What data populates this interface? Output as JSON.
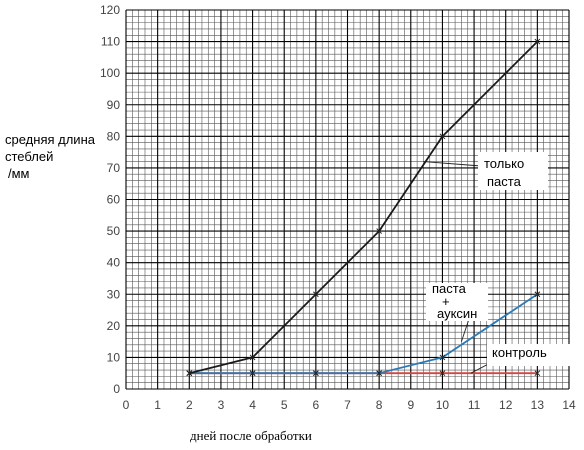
{
  "chart_data": {
    "type": "line",
    "title": "",
    "xlabel": "дней после обработки",
    "ylabel_lines": [
      "средняя длина",
      "стеблей",
      "/мм"
    ],
    "xlim": [
      0,
      14
    ],
    "ylim": [
      0,
      120
    ],
    "x_ticks": [
      0,
      1,
      2,
      3,
      4,
      5,
      6,
      7,
      8,
      9,
      10,
      11,
      12,
      13,
      14
    ],
    "y_ticks": [
      0,
      10,
      20,
      30,
      40,
      50,
      60,
      70,
      80,
      90,
      100,
      110,
      120
    ],
    "grid": true,
    "series": [
      {
        "name": "только паста",
        "label_lines": [
          "только",
          "паста"
        ],
        "color": "#1a1a1a",
        "x": [
          2,
          4,
          6,
          8,
          10,
          13
        ],
        "y": [
          5,
          10,
          30,
          50,
          80,
          110
        ]
      },
      {
        "name": "паста + ауксин",
        "label_lines": [
          "паста",
          "+",
          "ауксин"
        ],
        "color": "#2a7ab8",
        "x": [
          2,
          4,
          6,
          8,
          10,
          13
        ],
        "y": [
          5,
          5,
          5,
          5,
          10,
          30
        ]
      },
      {
        "name": "контроль",
        "label_lines": [
          "контроль"
        ],
        "color": "#d9443f",
        "x": [
          2,
          4,
          6,
          8,
          10,
          13
        ],
        "y": [
          5,
          5,
          5,
          5,
          5,
          5
        ]
      }
    ]
  }
}
